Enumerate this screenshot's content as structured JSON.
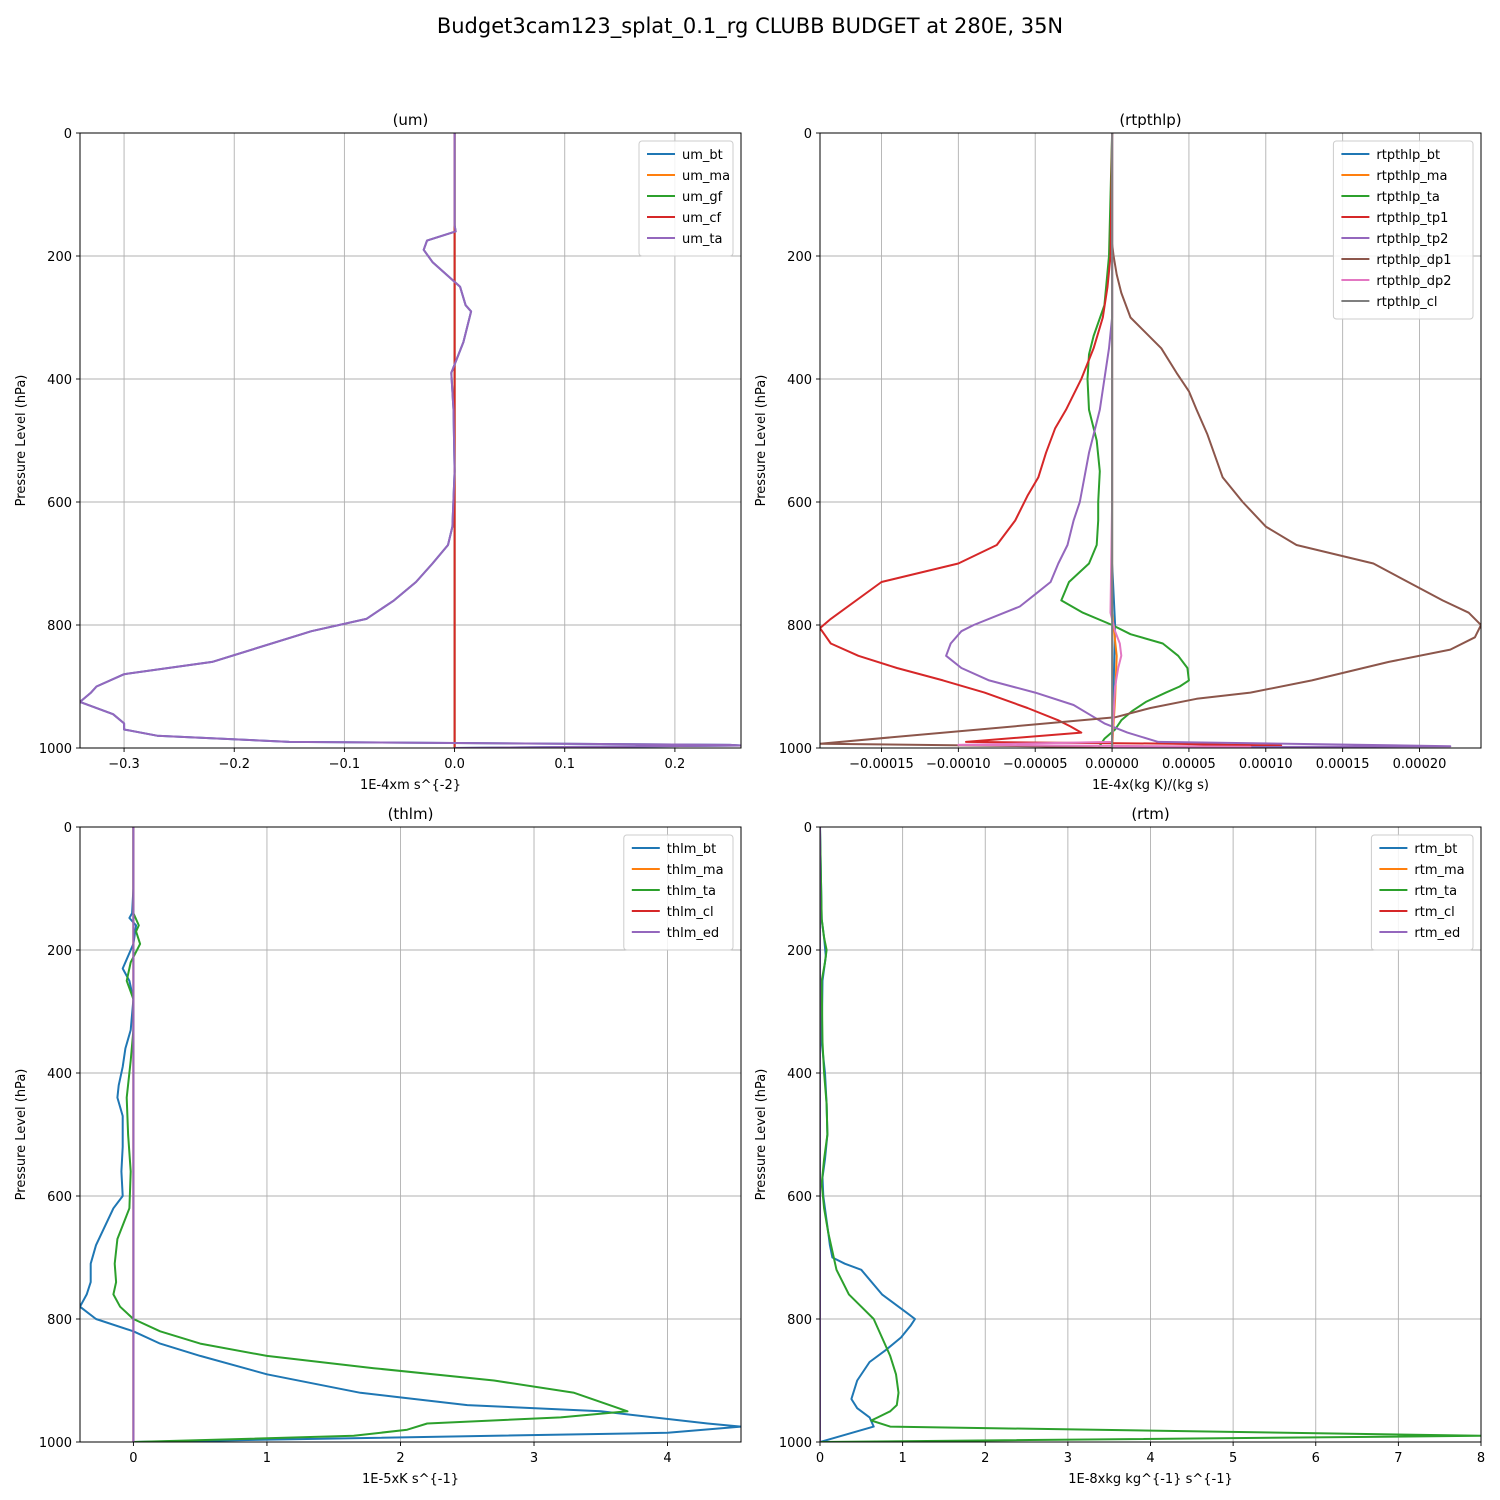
{
  "figure": {
    "suptitle": "Budget3cam123_splat_0.1_rg CLUBB BUDGET at 280E, 35N"
  },
  "colors": {
    "C0": "#1f77b4",
    "C1": "#ff7f0e",
    "C2": "#2ca02c",
    "C3": "#d62728",
    "C4": "#9467bd",
    "C5": "#8c564b",
    "C6": "#e377c2",
    "C7": "#7f7f7f",
    "grid": "#b0b0b0"
  },
  "chart_data": [
    {
      "type": "line",
      "title": "(um)",
      "xlabel": "1E-4xm s^{-2}",
      "ylabel": "Pressure Level (hPa)",
      "xlim": [
        -0.34,
        0.26
      ],
      "ylim": [
        1000,
        0
      ],
      "y_inverted": true,
      "grid": true,
      "legend": "top-right",
      "xticks": [
        -0.3,
        -0.2,
        -0.1,
        0.0,
        0.1,
        0.2
      ],
      "xtick_labels": [
        "−0.3",
        "−0.2",
        "−0.1",
        "0.0",
        "0.1",
        "0.2"
      ],
      "yticks": [
        0,
        200,
        400,
        600,
        800,
        1000
      ],
      "ytick_labels": [
        "0",
        "200",
        "400",
        "600",
        "800",
        "1000"
      ],
      "series": [
        {
          "name": "um_bt",
          "color": "C0",
          "x": [
            0,
            0,
            0,
            0.001,
            -0.025,
            -0.028,
            -0.02,
            0.005,
            0.01,
            0.015,
            0.008,
            -0.003,
            -0.001,
            0,
            -0.002,
            -0.006,
            -0.02,
            -0.035,
            -0.055,
            -0.08,
            -0.13,
            -0.22,
            -0.3,
            -0.325,
            -0.33,
            -0.34,
            -0.31,
            -0.3,
            -0.3,
            -0.27,
            -0.15,
            0.25,
            0.26,
            0
          ],
          "y": [
            0,
            100,
            150,
            160,
            175,
            190,
            210,
            250,
            280,
            290,
            340,
            390,
            450,
            550,
            640,
            670,
            700,
            730,
            760,
            790,
            810,
            860,
            880,
            900,
            910,
            925,
            945,
            960,
            970,
            980,
            990,
            995,
            996,
            1000
          ]
        },
        {
          "name": "um_ma",
          "color": "C1",
          "x": [
            0,
            0
          ],
          "y": [
            0,
            1000
          ]
        },
        {
          "name": "um_gf",
          "color": "C2",
          "x": [
            0,
            0
          ],
          "y": [
            0,
            1000
          ]
        },
        {
          "name": "um_cf",
          "color": "C3",
          "x": [
            0,
            0
          ],
          "y": [
            0,
            1000
          ]
        },
        {
          "name": "um_ta",
          "color": "C4",
          "x": [
            0,
            0,
            0,
            0.001,
            -0.025,
            -0.028,
            -0.02,
            0.005,
            0.01,
            0.015,
            0.008,
            -0.003,
            -0.001,
            0,
            -0.002,
            -0.006,
            -0.02,
            -0.035,
            -0.055,
            -0.08,
            -0.13,
            -0.22,
            -0.3,
            -0.325,
            -0.33,
            -0.34,
            -0.31,
            -0.3,
            -0.3,
            -0.27,
            -0.15,
            0.25,
            0.26,
            0
          ],
          "y": [
            0,
            100,
            150,
            160,
            175,
            190,
            210,
            250,
            280,
            290,
            340,
            390,
            450,
            550,
            640,
            670,
            700,
            730,
            760,
            790,
            810,
            860,
            880,
            900,
            910,
            925,
            945,
            960,
            970,
            980,
            990,
            995,
            996,
            1000
          ]
        }
      ]
    },
    {
      "type": "line",
      "title": "(rtpthlp)",
      "xlabel": "1E-4x(kg K)/(kg s)",
      "ylabel": "Pressure Level (hPa)",
      "xlim": [
        -0.00019,
        0.00024
      ],
      "ylim": [
        1000,
        0
      ],
      "y_inverted": true,
      "grid": true,
      "legend": "top-right",
      "xticks": [
        -0.00015,
        -0.0001,
        -5e-05,
        0.0,
        5e-05,
        0.0001,
        0.00015,
        0.0002
      ],
      "xtick_labels": [
        "−0.00015",
        "−0.00010",
        "−0.00005",
        "0.00000",
        "0.00005",
        "0.00010",
        "0.00015",
        "0.00020"
      ],
      "yticks": [
        0,
        200,
        400,
        600,
        800,
        1000
      ],
      "ytick_labels": [
        "0",
        "200",
        "400",
        "600",
        "800",
        "1000"
      ],
      "series": [
        {
          "name": "rtpthlp_bt",
          "color": "C0",
          "x": [
            0,
            0,
            2e-06,
            1e-06,
            0,
            0
          ],
          "y": [
            0,
            700,
            800,
            900,
            990,
            1000
          ]
        },
        {
          "name": "rtpthlp_ma",
          "color": "C1",
          "x": [
            0,
            0,
            3e-06,
            2e-06,
            0
          ],
          "y": [
            0,
            780,
            850,
            920,
            1000
          ]
        },
        {
          "name": "rtpthlp_ta",
          "color": "C2",
          "x": [
            0,
            -2e-06,
            -5e-06,
            -1.2e-05,
            -1.5e-05,
            -1.6e-05,
            -1.5e-05,
            -1e-05,
            -8e-06,
            -9e-06,
            -9e-06,
            -1e-05,
            -1.5e-05,
            -2.8e-05,
            -3.3e-05,
            -1.9e-05,
            0,
            1.2e-05,
            3.3e-05,
            4.3e-05,
            4.9e-05,
            5e-05,
            4.4e-05,
            3.5e-05,
            2.2e-05,
            1.3e-05,
            6e-06,
            2e-06,
            -5e-06,
            -9e-06
          ],
          "y": [
            0,
            200,
            280,
            330,
            360,
            400,
            450,
            500,
            550,
            600,
            630,
            670,
            700,
            730,
            760,
            780,
            800,
            815,
            830,
            850,
            870,
            890,
            900,
            910,
            925,
            940,
            955,
            970,
            985,
            1000
          ]
        },
        {
          "name": "rtpthlp_tp1",
          "color": "C3",
          "x": [
            0,
            -1e-06,
            -3e-06,
            -6e-06,
            -1.2e-05,
            -2e-05,
            -3e-05,
            -3.7e-05,
            -4.3e-05,
            -4.8e-05,
            -5.5e-05,
            -6.3e-05,
            -7.5e-05,
            -0.0001,
            -0.00015,
            -0.000183,
            -0.00019,
            -0.000183,
            -0.000165,
            -0.00014,
            -0.00011,
            -8.3e-05,
            -5.5e-05,
            -3.5e-05,
            -2.7e-05,
            -2e-05,
            -9.5e-05,
            4e-05,
            0.00011,
            2e-05,
            0
          ],
          "y": [
            0,
            200,
            250,
            300,
            350,
            400,
            450,
            480,
            520,
            560,
            590,
            630,
            670,
            700,
            730,
            790,
            805,
            830,
            850,
            870,
            890,
            910,
            935,
            955,
            965,
            975,
            990,
            993,
            996,
            998,
            1000
          ]
        },
        {
          "name": "rtpthlp_tp2",
          "color": "C4",
          "x": [
            0,
            0,
            -2e-06,
            -5e-06,
            -8e-06,
            -1.1e-05,
            -1.5e-05,
            -1.8e-05,
            -2.1e-05,
            -2.5e-05,
            -2.9e-05,
            -3.5e-05,
            -4e-05,
            -5e-05,
            -6e-05,
            -9e-05,
            -9.8e-05,
            -0.000105,
            -0.000108,
            -9.8e-05,
            -8e-05,
            -5e-05,
            -2.5e-05,
            -1.5e-05,
            -5e-06,
            1e-05,
            3e-05,
            0.00022,
            3e-05,
            0
          ],
          "y": [
            0,
            300,
            350,
            400,
            450,
            480,
            520,
            560,
            600,
            630,
            670,
            700,
            730,
            750,
            770,
            800,
            810,
            830,
            850,
            870,
            890,
            910,
            930,
            945,
            960,
            975,
            990,
            997,
            999,
            1000
          ]
        },
        {
          "name": "rtpthlp_dp1",
          "color": "C5",
          "x": [
            0,
            0,
            1e-06,
            3e-06,
            6e-06,
            1.2e-05,
            2e-05,
            3.2e-05,
            4.2e-05,
            5e-05,
            5.5e-05,
            6.2e-05,
            7.2e-05,
            8.5e-05,
            0.0001,
            0.00012,
            0.00017,
            0.000215,
            0.000232,
            0.00024,
            0.000236,
            0.00022,
            0.00018,
            0.00013,
            9e-05,
            5.5e-05,
            2.5e-05,
            2e-06,
            -0.00019,
            -5e-05,
            0
          ],
          "y": [
            0,
            180,
            200,
            230,
            260,
            300,
            320,
            350,
            390,
            420,
            450,
            490,
            560,
            600,
            640,
            670,
            700,
            760,
            780,
            800,
            820,
            840,
            860,
            890,
            910,
            920,
            935,
            950,
            993,
            997,
            1000
          ]
        },
        {
          "name": "rtpthlp_dp2",
          "color": "C6",
          "x": [
            0,
            0,
            -1e-06,
            2e-06,
            5e-06,
            6e-06,
            4e-06,
            2e-06,
            0,
            -0.0001,
            9e-05,
            0
          ],
          "y": [
            0,
            600,
            780,
            810,
            830,
            850,
            870,
            900,
            990,
            995,
            998,
            1000
          ]
        },
        {
          "name": "rtpthlp_cl",
          "color": "C7",
          "x": [
            0,
            0
          ],
          "y": [
            0,
            1000
          ]
        }
      ]
    },
    {
      "type": "line",
      "title": "(thlm)",
      "xlabel": "1E-5xK s^{-1}",
      "ylabel": "Pressure Level (hPa)",
      "xlim": [
        -0.4,
        4.55
      ],
      "ylim": [
        1000,
        0
      ],
      "y_inverted": true,
      "grid": true,
      "legend": "top-right",
      "xticks": [
        0,
        1,
        2,
        3,
        4
      ],
      "xtick_labels": [
        "0",
        "1",
        "2",
        "3",
        "4"
      ],
      "yticks": [
        0,
        200,
        400,
        600,
        800,
        1000
      ],
      "ytick_labels": [
        "0",
        "200",
        "400",
        "600",
        "800",
        "1000"
      ],
      "series": [
        {
          "name": "thlm_bt",
          "color": "C0",
          "x": [
            0,
            0,
            -0.01,
            -0.03,
            0.02,
            0.0,
            -0.08,
            -0.03,
            0,
            -0.02,
            -0.06,
            -0.08,
            -0.11,
            -0.12,
            -0.08,
            -0.08,
            -0.09,
            -0.08,
            -0.15,
            -0.28,
            -0.32,
            -0.32,
            -0.35,
            -0.4,
            -0.28,
            0,
            0.2,
            0.5,
            1.0,
            1.7,
            2.5,
            3.5,
            4.3,
            4.55,
            4.0,
            0
          ],
          "y": [
            0,
            100,
            140,
            148,
            160,
            190,
            230,
            250,
            280,
            330,
            360,
            390,
            420,
            440,
            470,
            520,
            560,
            600,
            620,
            680,
            710,
            740,
            760,
            780,
            800,
            820,
            840,
            860,
            890,
            920,
            940,
            950,
            970,
            975,
            985,
            1000
          ]
        },
        {
          "name": "thlm_ma",
          "color": "C1",
          "x": [
            0,
            0
          ],
          "y": [
            0,
            1000
          ]
        },
        {
          "name": "thlm_ta",
          "color": "C2",
          "x": [
            0,
            0,
            0,
            0.04,
            0.02,
            0.05,
            -0.02,
            -0.05,
            0,
            0,
            -0.02,
            -0.05,
            -0.04,
            -0.02,
            -0.03,
            -0.12,
            -0.14,
            -0.13,
            -0.15,
            -0.1,
            0,
            0.2,
            0.5,
            1.0,
            1.8,
            2.7,
            3.3,
            3.7,
            3.2,
            2.2,
            2.05,
            1.65,
            0
          ],
          "y": [
            0,
            100,
            140,
            160,
            170,
            190,
            220,
            250,
            280,
            330,
            380,
            440,
            500,
            560,
            620,
            670,
            710,
            740,
            760,
            780,
            800,
            820,
            840,
            860,
            880,
            900,
            920,
            950,
            960,
            970,
            980,
            990,
            1000
          ]
        },
        {
          "name": "thlm_cl",
          "color": "C3",
          "x": [
            0,
            0
          ],
          "y": [
            0,
            1000
          ]
        },
        {
          "name": "thlm_ed",
          "color": "C4",
          "x": [
            0,
            0
          ],
          "y": [
            0,
            1000
          ]
        }
      ]
    },
    {
      "type": "line",
      "title": "(rtm)",
      "xlabel": "1E-8xkg kg^{-1} s^{-1}",
      "ylabel": "Pressure Level (hPa)",
      "xlim": [
        0,
        8
      ],
      "ylim": [
        1000,
        0
      ],
      "y_inverted": true,
      "grid": true,
      "legend": "top-right",
      "xticks": [
        0,
        1,
        2,
        3,
        4,
        5,
        6,
        7,
        8
      ],
      "xtick_labels": [
        "0",
        "1",
        "2",
        "3",
        "4",
        "5",
        "6",
        "7",
        "8"
      ],
      "yticks": [
        0,
        200,
        400,
        600,
        800,
        1000
      ],
      "ytick_labels": [
        "0",
        "200",
        "400",
        "600",
        "800",
        "1000"
      ],
      "series": [
        {
          "name": "rtm_bt",
          "color": "C0",
          "x": [
            0,
            0.02,
            0.05,
            0.07,
            0.03,
            0.02,
            0.06,
            0.08,
            0.09,
            0.06,
            0.03,
            0.04,
            0.08,
            0.1,
            0.12,
            0.15,
            0.3,
            0.5,
            0.75,
            1.05,
            1.15,
            1.1,
            0.98,
            0.8,
            0.6,
            0.45,
            0.38,
            0.45,
            0.6,
            0.65,
            0
          ],
          "y": [
            0,
            150,
            180,
            210,
            250,
            350,
            400,
            450,
            500,
            540,
            570,
            600,
            640,
            660,
            680,
            700,
            710,
            720,
            760,
            790,
            800,
            810,
            830,
            850,
            870,
            900,
            930,
            945,
            960,
            975,
            1000
          ]
        },
        {
          "name": "rtm_ma",
          "color": "C1",
          "x": [
            0,
            0
          ],
          "y": [
            0,
            1000
          ]
        },
        {
          "name": "rtm_ta",
          "color": "C2",
          "x": [
            0,
            0.02,
            0.05,
            0.08,
            0.06,
            0.02,
            0.03,
            0.05,
            0.08,
            0.09,
            0.05,
            0.02,
            0.05,
            0.1,
            0.2,
            0.35,
            0.5,
            0.65,
            0.85,
            0.92,
            0.95,
            0.93,
            0.85,
            0.7,
            0.62,
            0.85,
            8.0,
            0
          ],
          "y": [
            0,
            150,
            180,
            200,
            220,
            250,
            350,
            400,
            450,
            500,
            540,
            580,
            620,
            660,
            720,
            760,
            780,
            800,
            860,
            890,
            920,
            940,
            950,
            960,
            965,
            975,
            990,
            1000
          ]
        },
        {
          "name": "rtm_cl",
          "color": "C3",
          "x": [
            0,
            0
          ],
          "y": [
            0,
            1000
          ]
        },
        {
          "name": "rtm_ed",
          "color": "C4",
          "x": [
            0,
            0
          ],
          "y": [
            0,
            1000
          ]
        }
      ]
    }
  ]
}
